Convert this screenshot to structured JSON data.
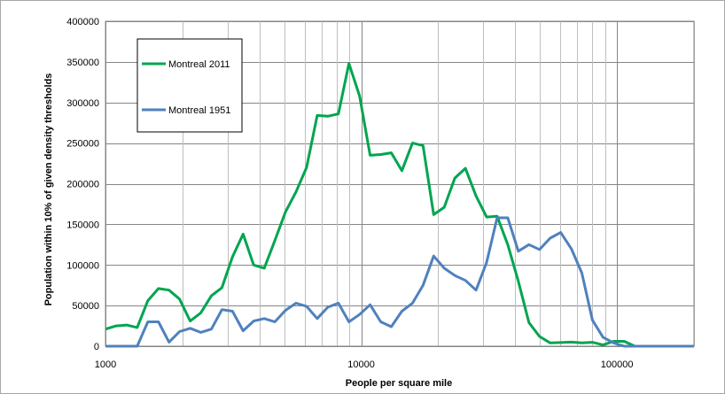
{
  "chart_data": {
    "type": "line",
    "title": "",
    "xlabel": "People per square mile",
    "ylabel": "Population within 10% of given density thresholds",
    "xscale": "log",
    "xlim": [
      1000,
      200000
    ],
    "ylim": [
      0,
      400000
    ],
    "x_ticks": [
      1000,
      10000,
      100000
    ],
    "x_tick_labels": [
      "1000",
      "10000",
      "100000"
    ],
    "y_ticks": [
      0,
      50000,
      100000,
      150000,
      200000,
      250000,
      300000,
      350000,
      400000
    ],
    "y_tick_labels": [
      "0",
      "50000",
      "100000",
      "150000",
      "200000",
      "250000",
      "300000",
      "350000",
      "400000"
    ],
    "grid": {
      "horizontal": true,
      "vertical_log": true
    },
    "legend_position": "top-left",
    "x": [
      1000,
      1100,
      1210,
      1331,
      1464,
      1611,
      1772,
      1949,
      2144,
      2358,
      2594,
      2853,
      3138,
      3452,
      3797,
      4177,
      4595,
      5054,
      5560,
      6116,
      6727,
      7400,
      8140,
      8954,
      9850,
      10835,
      11918,
      13110,
      14421,
      15863,
      17449,
      19194,
      21114,
      23225,
      25548,
      28102,
      30913,
      34004,
      37404,
      41145,
      45259,
      49785,
      54764,
      60240,
      66264,
      72890,
      80180,
      88197,
      97017,
      106719,
      117391,
      129130,
      142043,
      156247,
      171872,
      189059,
      200000
    ],
    "series": [
      {
        "name": "Montreal 2011",
        "color": "#00a550",
        "values": [
          21000,
          25000,
          26000,
          23000,
          56000,
          71000,
          69000,
          58000,
          31000,
          41000,
          62000,
          72000,
          110000,
          138000,
          100000,
          96000,
          130000,
          165000,
          190000,
          220000,
          284000,
          283000,
          286000,
          348000,
          308000,
          235000,
          236000,
          238000,
          216000,
          250000,
          247000,
          162000,
          171000,
          207000,
          219000,
          185000,
          159000,
          160000,
          125000,
          80000,
          29000,
          12000,
          4000,
          4500,
          5000,
          4000,
          4800,
          1500,
          6000,
          6000,
          0,
          0,
          0,
          0,
          0,
          0,
          0
        ]
      },
      {
        "name": "Montreal 1951",
        "color": "#4f81bd",
        "values": [
          0,
          0,
          0,
          0,
          30000,
          30000,
          5000,
          18000,
          22000,
          17000,
          21000,
          45000,
          43000,
          19000,
          31000,
          34000,
          30000,
          44000,
          53000,
          49000,
          34000,
          48000,
          53000,
          30000,
          39000,
          51000,
          30000,
          24000,
          43000,
          53000,
          75000,
          111000,
          96000,
          87000,
          81000,
          69000,
          103000,
          158000,
          158000,
          117000,
          125000,
          119000,
          133000,
          140000,
          120000,
          90000,
          32000,
          11000,
          4000,
          0,
          0,
          0,
          0,
          0,
          0,
          0,
          0
        ]
      }
    ]
  }
}
